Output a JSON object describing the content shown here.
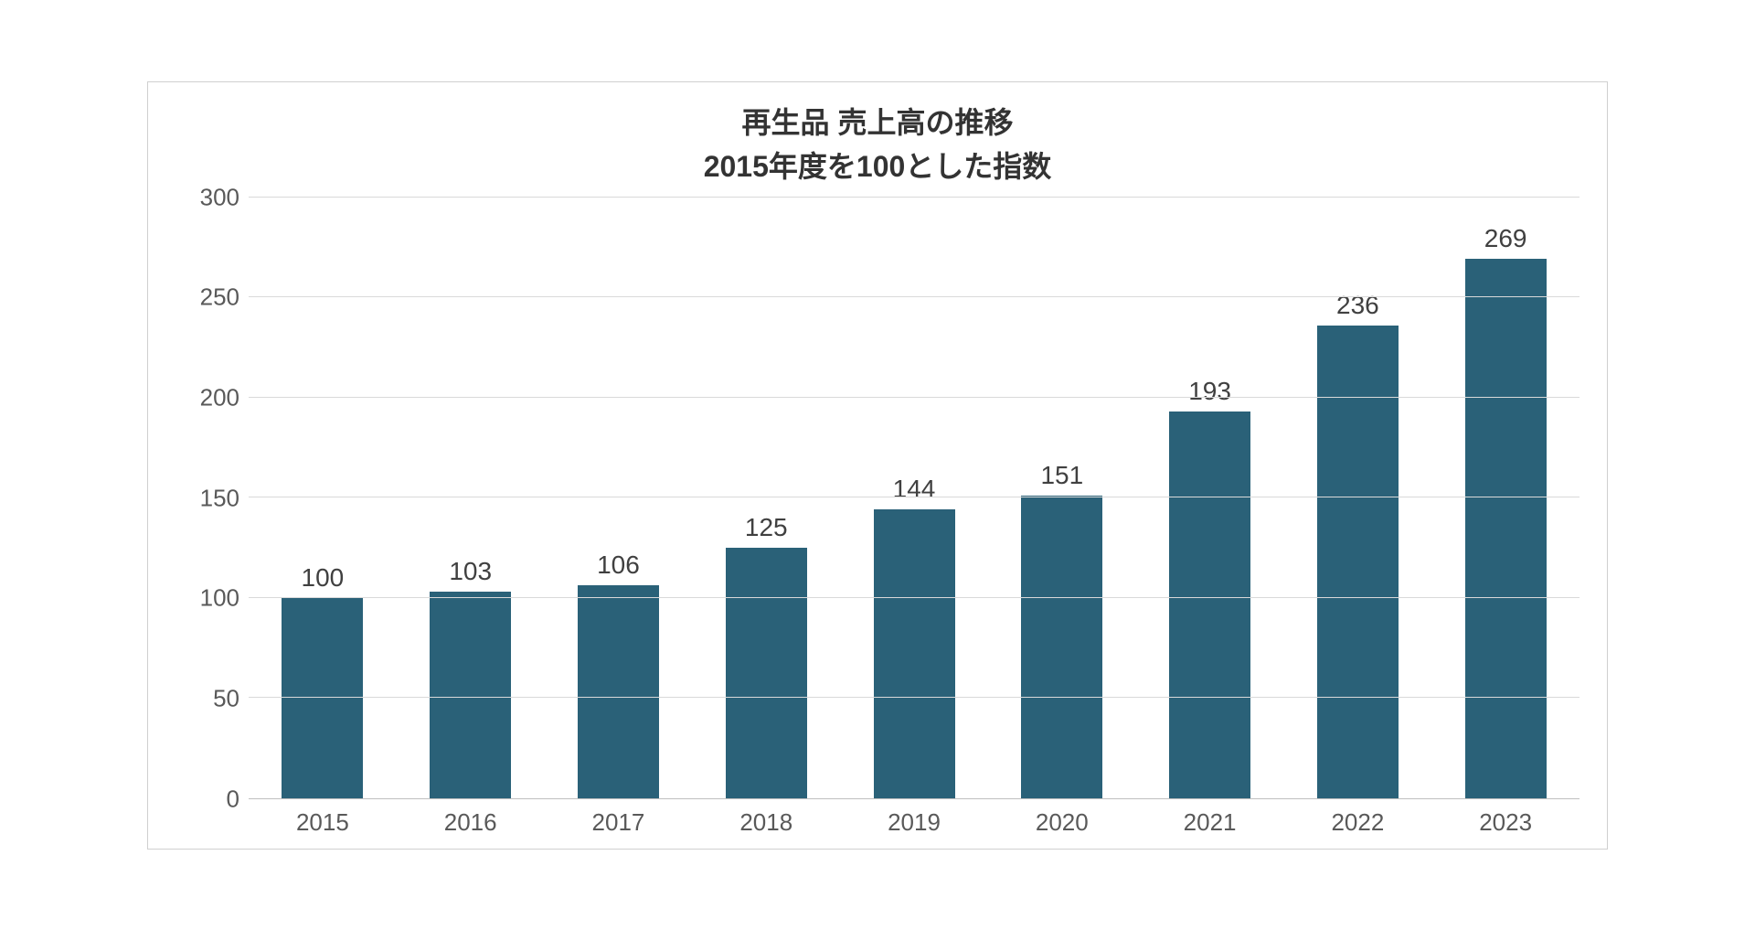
{
  "chart": {
    "type": "bar",
    "title_line1": "再生品 売上高の推移",
    "title_line2": "2015年度を100とした指数",
    "title_fontsize": 32,
    "title_color": "#333333",
    "categories": [
      "2015",
      "2016",
      "2017",
      "2018",
      "2019",
      "2020",
      "2021",
      "2022",
      "2023"
    ],
    "values": [
      100,
      103,
      106,
      125,
      144,
      151,
      193,
      236,
      269
    ],
    "bar_color": "#2a6178",
    "ylim": [
      0,
      300
    ],
    "ytick_step": 50,
    "yticks": [
      0,
      50,
      100,
      150,
      200,
      250,
      300
    ],
    "axis_fontsize": 26,
    "value_label_fontsize": 28,
    "axis_label_color": "#595959",
    "value_label_color": "#404040",
    "grid_color": "#d9d9d9",
    "baseline_color": "#bfbfbf",
    "border_color": "#d0d0d0",
    "background_color": "#ffffff",
    "bar_width_ratio": 0.55
  }
}
